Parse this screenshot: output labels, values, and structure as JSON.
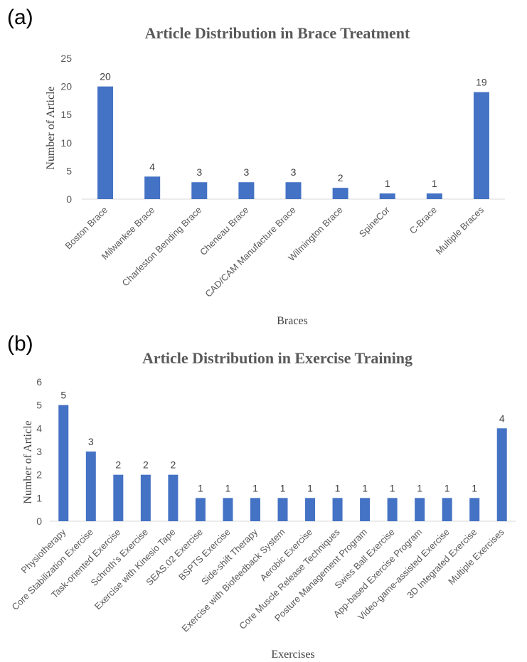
{
  "chart_data": [
    {
      "panel": "(a)",
      "type": "bar",
      "title": "Article Distribution in Brace Treatment",
      "xlabel": "Braces",
      "ylabel": "Number of Article",
      "ylim": [
        0,
        25
      ],
      "yticks": [
        0,
        5,
        10,
        15,
        20,
        25
      ],
      "grid": false,
      "bar_color": "#4472c4",
      "categories": [
        "Boston Brace",
        "Milwankee Brace",
        "Charleston Bending Brace",
        "Cheneau Brace",
        "CAD/CAM Manufacture Brace",
        "Wilmington Brace",
        "SpineCor",
        "C-Brace",
        "Multiple Braces"
      ],
      "values": [
        20,
        4,
        3,
        3,
        3,
        2,
        1,
        1,
        19
      ]
    },
    {
      "panel": "(b)",
      "type": "bar",
      "title": "Article Distribution in Exercise Training",
      "xlabel": "Exercises",
      "ylabel": "Number of Article",
      "ylim": [
        0,
        6
      ],
      "yticks": [
        0,
        1,
        2,
        3,
        4,
        5,
        6
      ],
      "grid": false,
      "bar_color": "#4472c4",
      "categories": [
        "Physiotherapy",
        "Core Stabilization Exercise",
        "Task-oriented Exercise",
        "Schroth's Exercise",
        "Exercise with Kinesio Tape",
        "SEAS.02 Exercise",
        "BSPTS Exercise",
        "Side-shift Therapy",
        "Exercise with Biofeedback System",
        "Aerobic Exercise",
        "Core Muscle Release Techniques",
        "Posture Management Program",
        "Swiss Ball Exercise",
        "App-based Exercise Program",
        "Video-game-assisted Exercise",
        "3D Integrated Exercise",
        "Multiple Exercises"
      ],
      "values": [
        5,
        3,
        2,
        2,
        2,
        1,
        1,
        1,
        1,
        1,
        1,
        1,
        1,
        1,
        1,
        1,
        4
      ]
    }
  ]
}
